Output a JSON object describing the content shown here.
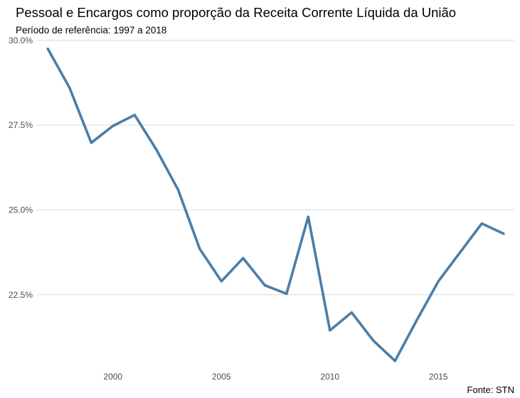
{
  "chart_data": {
    "type": "line",
    "title": "Pessoal e Encargos como proporção da Receita Corrente Líquida da União",
    "subtitle": "Período de referência: 1997 a 2018",
    "caption": "Fonte: STN",
    "xlabel": "",
    "ylabel": "",
    "x": [
      1997,
      1998,
      1999,
      2000,
      2001,
      2002,
      2003,
      2004,
      2005,
      2006,
      2007,
      2008,
      2009,
      2010,
      2011,
      2012,
      2013,
      2014,
      2015,
      2016,
      2017,
      2018
    ],
    "series": [
      {
        "values": [
          29.75,
          28.6,
          26.98,
          27.48,
          27.8,
          26.78,
          25.6,
          23.85,
          22.9,
          23.58,
          22.78,
          22.53,
          24.8,
          21.45,
          21.98,
          21.15,
          20.55,
          21.75,
          22.9,
          23.75,
          24.6,
          24.3
        ],
        "color": "#4a7ea8"
      }
    ],
    "xlim": [
      1996.5,
      2018.5
    ],
    "ylim": [
      20.4,
      30.1
    ],
    "x_ticks": [
      2000,
      2005,
      2010,
      2015
    ],
    "x_tick_labels": [
      "2000",
      "2005",
      "2010",
      "2015"
    ],
    "y_ticks": [
      22.5,
      25.0,
      27.5,
      30.0
    ],
    "y_tick_labels": [
      "22.5%",
      "25.0%",
      "27.5%",
      "30.0%"
    ],
    "grid": "horizontal-major",
    "legend": "none"
  }
}
